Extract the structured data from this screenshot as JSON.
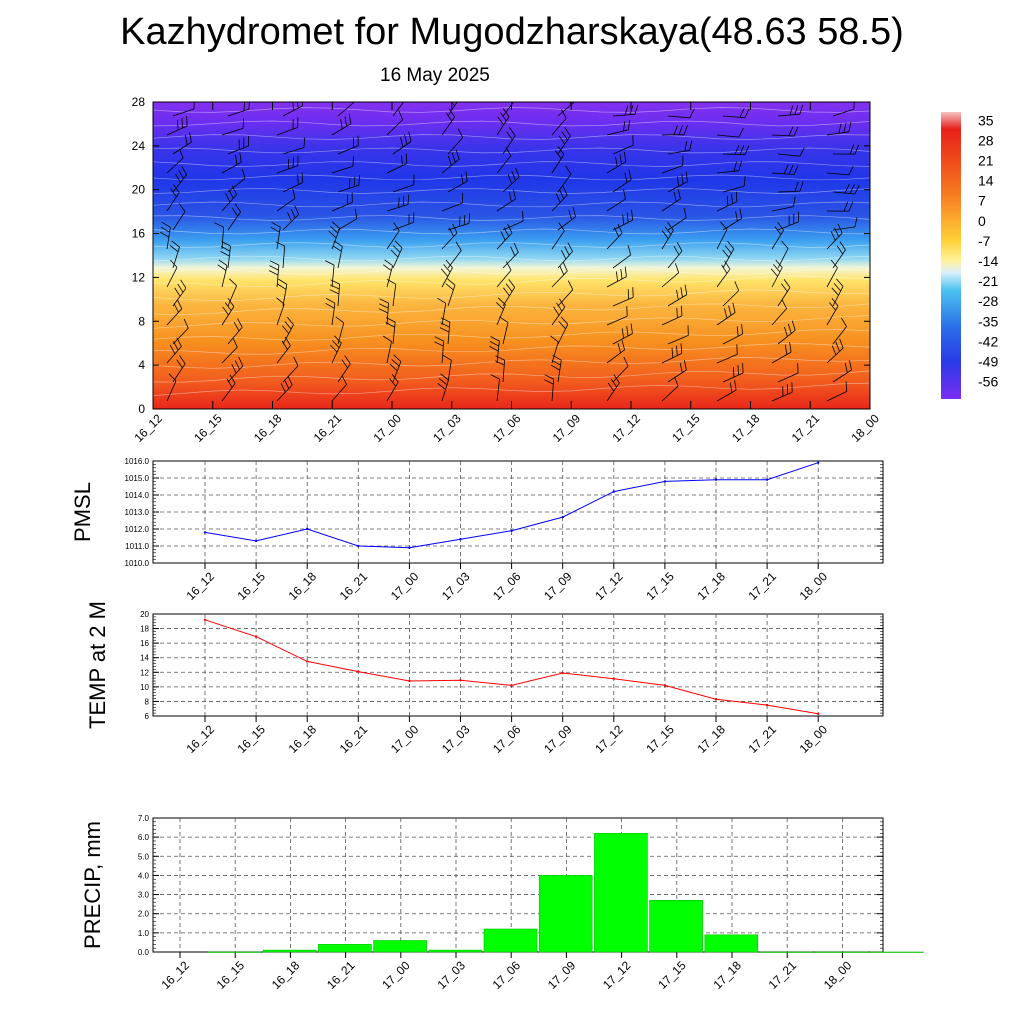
{
  "title": "Kazhydromet for Mugodzharskaya(48.63 58.5)",
  "subtitle": "16 May 2025",
  "chart_data": [
    {
      "type": "heatmap",
      "title": "",
      "x_ticks": [
        "16_12",
        "16_15",
        "16_18",
        "16_21",
        "17_00",
        "17_03",
        "17_06",
        "17_09",
        "17_12",
        "17_15",
        "17_18",
        "17_21",
        "18_00"
      ],
      "y_ticks": [
        "0",
        "4",
        "8",
        "12",
        "16",
        "20",
        "24",
        "28"
      ],
      "ylim": [
        0,
        28
      ],
      "colorbar_labels": [
        "35",
        "28",
        "21",
        "14",
        "7",
        "0",
        "-7",
        "-14",
        "-21",
        "-28",
        "-35",
        "-42",
        "-49",
        "-56"
      ],
      "colorbar_range": [
        -60,
        40
      ],
      "colors": {
        "warm": "#e8201a",
        "orange": "#f58a1e",
        "yellow": "#ffe96a",
        "cyan": "#4ec3f0",
        "blue": "#2040e8",
        "violet": "#7a2ef0"
      },
      "overlay": "wind barbs"
    },
    {
      "type": "line",
      "ylabel": "PMSL",
      "categories": [
        "16_12",
        "16_15",
        "16_18",
        "16_21",
        "17_00",
        "17_03",
        "17_06",
        "17_09",
        "17_12",
        "17_15",
        "17_18",
        "17_21",
        "18_00"
      ],
      "series": [
        {
          "values": [
            1011.8,
            1011.3,
            1012.0,
            1011.0,
            1010.9,
            1011.4,
            1011.9,
            1012.7,
            1014.2,
            1014.8,
            1014.9,
            1014.9,
            1015.9
          ],
          "color": "#0000ff"
        }
      ],
      "yticks": [
        "1010.0",
        "1011.0",
        "1012.0",
        "1013.0",
        "1014.0",
        "1015.0",
        "1016.0"
      ],
      "ylim": [
        1010,
        1016
      ],
      "grid": true
    },
    {
      "type": "line",
      "ylabel": "TEMP at 2 M",
      "categories": [
        "16_12",
        "16_15",
        "16_18",
        "16_21",
        "17_00",
        "17_03",
        "17_06",
        "17_09",
        "17_12",
        "17_15",
        "17_18",
        "17_21",
        "18_00"
      ],
      "series": [
        {
          "values": [
            19.2,
            16.9,
            13.5,
            12.1,
            10.8,
            10.9,
            10.2,
            11.9,
            11.1,
            10.2,
            8.3,
            7.5,
            6.3
          ],
          "color": "#ff0000"
        }
      ],
      "yticks": [
        "6",
        "8",
        "10",
        "12",
        "14",
        "16",
        "18",
        "20"
      ],
      "ylim": [
        6,
        20
      ],
      "grid": true
    },
    {
      "type": "bar",
      "ylabel": "PRECIP, mm",
      "categories": [
        "16_12",
        "16_15",
        "16_18",
        "16_21",
        "17_00",
        "17_03",
        "17_06",
        "17_09",
        "17_12",
        "17_15",
        "17_18",
        "17_21",
        "18_00"
      ],
      "values": [
        0.0,
        0.1,
        0.4,
        0.6,
        0.1,
        1.2,
        4.0,
        6.2,
        2.7,
        0.9,
        0.0,
        0.0,
        0.0
      ],
      "color": "#00ff00",
      "yticks": [
        "0.0",
        "1.0",
        "2.0",
        "3.0",
        "4.0",
        "5.0",
        "6.0",
        "7.0"
      ],
      "ylim": [
        0,
        7
      ],
      "grid": true
    }
  ]
}
